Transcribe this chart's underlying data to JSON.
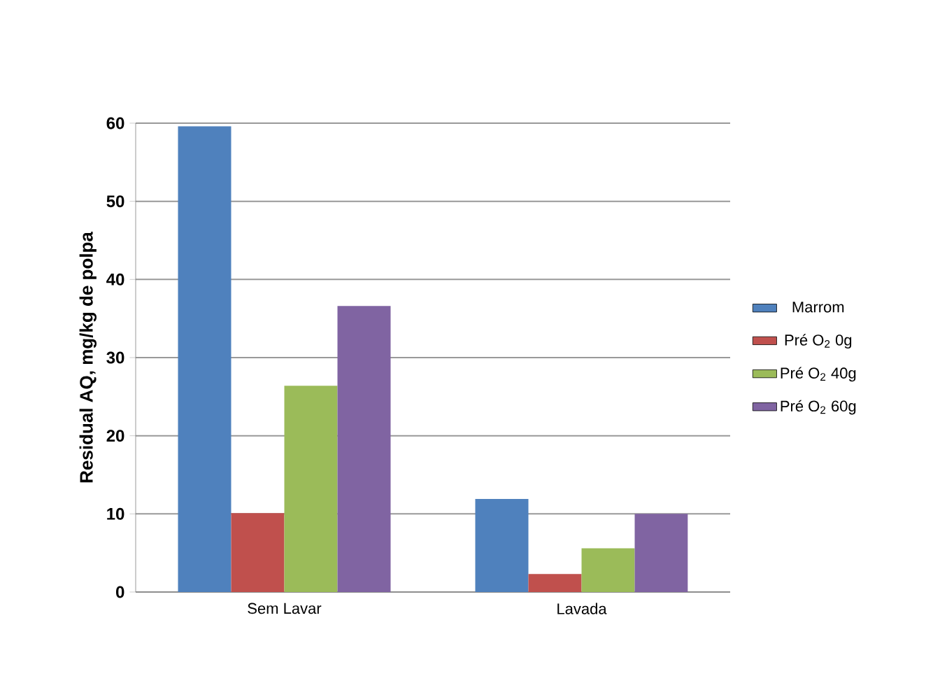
{
  "chart_data": {
    "type": "bar",
    "ylabel": "Residual AQ, mg/kg de polpa",
    "categories": [
      "Sem Lavar",
      "Lavada"
    ],
    "series": [
      {
        "name": "Marrom",
        "color": "#4f81bd",
        "values": [
          59.6,
          11.9
        ]
      },
      {
        "name": "Pré O$_{2}$  0g",
        "color": "#c0504d",
        "values": [
          10.1,
          2.3
        ]
      },
      {
        "name": "Pré O$_{2}$  40g",
        "color": "#9bbb59",
        "values": [
          26.4,
          5.6
        ]
      },
      {
        "name": "Pré O$_{2}$  60g",
        "color": "#8064a2",
        "values": [
          36.6,
          10.0
        ]
      }
    ],
    "ylim": [
      0,
      60
    ],
    "yticks": [
      0,
      10,
      20,
      30,
      40,
      50,
      60
    ],
    "grid": "y",
    "legend": "right"
  }
}
